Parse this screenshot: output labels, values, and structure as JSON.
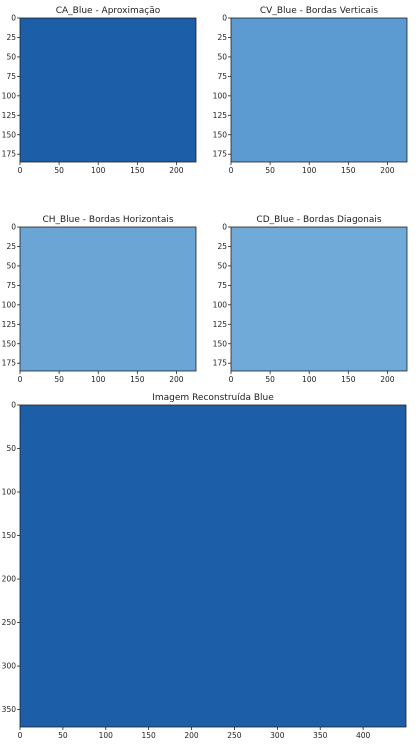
{
  "chart_data": [
    {
      "type": "heatmap",
      "title": "CA_Blue - Aproximação",
      "colormap": "Blues",
      "fill": "#1c5ea8",
      "xlim": [
        0,
        225
      ],
      "ylim": [
        185,
        0
      ],
      "xticks": [
        0,
        50,
        100,
        150,
        200
      ],
      "yticks": [
        0,
        25,
        50,
        75,
        100,
        125,
        150,
        175
      ]
    },
    {
      "type": "heatmap",
      "title": "CV_Blue - Bordas Verticais",
      "colormap": "Blues",
      "fill": "#5b9bd1",
      "xlim": [
        0,
        225
      ],
      "ylim": [
        185,
        0
      ],
      "xticks": [
        0,
        50,
        100,
        150,
        200
      ],
      "yticks": [
        0,
        25,
        50,
        75,
        100,
        125,
        150,
        175
      ]
    },
    {
      "type": "heatmap",
      "title": "CH_Blue - Bordas Horizontais",
      "colormap": "Blues",
      "fill": "#6aa5d6",
      "xlim": [
        0,
        225
      ],
      "ylim": [
        185,
        0
      ],
      "xticks": [
        0,
        50,
        100,
        150,
        200
      ],
      "yticks": [
        0,
        25,
        50,
        75,
        100,
        125,
        150,
        175
      ]
    },
    {
      "type": "heatmap",
      "title": "CD_Blue - Bordas Diagonais",
      "colormap": "Blues",
      "fill": "#70aad8",
      "xlim": [
        0,
        225
      ],
      "ylim": [
        185,
        0
      ],
      "xticks": [
        0,
        50,
        100,
        150,
        200
      ],
      "yticks": [
        0,
        25,
        50,
        75,
        100,
        125,
        150,
        175
      ]
    },
    {
      "type": "heatmap",
      "title": "Imagem Reconstruída Blue",
      "colormap": "Blues",
      "fill": "#1c5ea8",
      "xlim": [
        0,
        450
      ],
      "ylim": [
        370,
        0
      ],
      "xticks": [
        0,
        50,
        100,
        150,
        200,
        250,
        300,
        350,
        400
      ],
      "yticks": [
        0,
        50,
        100,
        150,
        200,
        250,
        300,
        350
      ]
    }
  ]
}
